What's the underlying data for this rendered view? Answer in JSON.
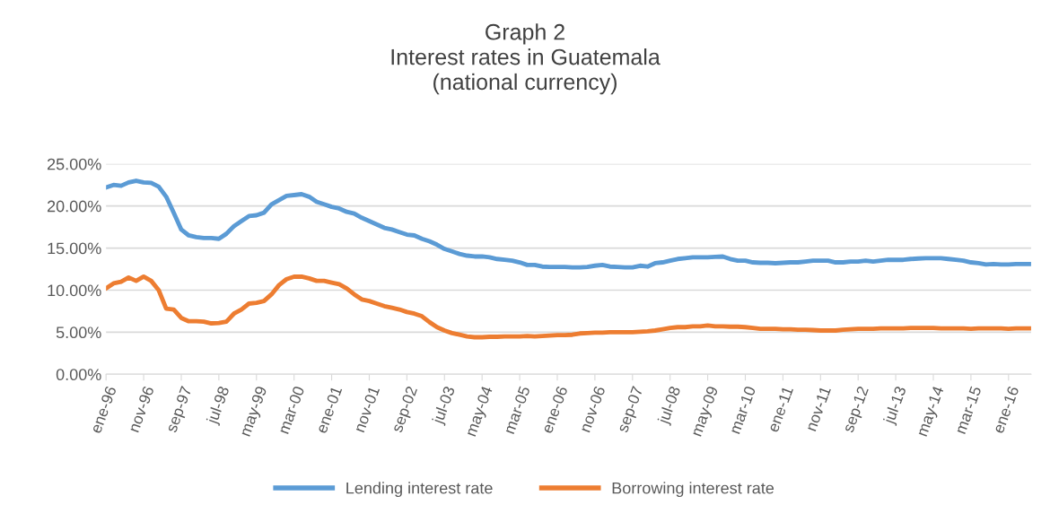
{
  "chart_data": {
    "type": "line",
    "title": "Graph 2\nInterest rates in Guatemala\n(national currency)",
    "categories": [
      "ene-96",
      null,
      null,
      null,
      null,
      "nov-96",
      null,
      null,
      null,
      null,
      "sep-97",
      null,
      null,
      null,
      null,
      "jul-98",
      null,
      null,
      null,
      null,
      "may-99",
      null,
      null,
      null,
      null,
      "mar-00",
      null,
      null,
      null,
      null,
      "ene-01",
      null,
      null,
      null,
      null,
      "nov-01",
      null,
      null,
      null,
      null,
      "sep-02",
      null,
      null,
      null,
      null,
      "jul-03",
      null,
      null,
      null,
      null,
      "may-04",
      null,
      null,
      null,
      null,
      "mar-05",
      null,
      null,
      null,
      null,
      "ene-06",
      null,
      null,
      null,
      null,
      "nov-06",
      null,
      null,
      null,
      null,
      "sep-07",
      null,
      null,
      null,
      null,
      "jul-08",
      null,
      null,
      null,
      null,
      "may-09",
      null,
      null,
      null,
      null,
      "mar-10",
      null,
      null,
      null,
      null,
      "ene-11",
      null,
      null,
      null,
      null,
      "nov-11",
      null,
      null,
      null,
      null,
      "sep-12",
      null,
      null,
      null,
      null,
      "jul-13",
      null,
      null,
      null,
      null,
      "may-14",
      null,
      null,
      null,
      null,
      "mar-15",
      null,
      null,
      null,
      null,
      "ene-16",
      null,
      null,
      null
    ],
    "series": [
      {
        "name": "Lending interest rate",
        "color": "#5b9bd5",
        "values": [
          22.2,
          22.5,
          22.4,
          22.8,
          23.0,
          22.8,
          22.75,
          22.3,
          21.1,
          19.2,
          17.2,
          16.5,
          16.3,
          16.2,
          16.2,
          16.1,
          16.7,
          17.6,
          18.2,
          18.8,
          18.9,
          19.2,
          20.2,
          20.7,
          21.2,
          21.3,
          21.4,
          21.1,
          20.5,
          20.2,
          19.9,
          19.7,
          19.3,
          19.1,
          18.6,
          18.2,
          17.8,
          17.4,
          17.2,
          16.9,
          16.6,
          16.5,
          16.1,
          15.8,
          15.4,
          14.9,
          14.6,
          14.3,
          14.1,
          14.0,
          14.0,
          13.9,
          13.7,
          13.6,
          13.5,
          13.3,
          13.0,
          13.0,
          12.8,
          12.75,
          12.75,
          12.75,
          12.7,
          12.7,
          12.75,
          12.9,
          13.0,
          12.8,
          12.75,
          12.7,
          12.7,
          12.9,
          12.8,
          13.2,
          13.3,
          13.5,
          13.7,
          13.8,
          13.9,
          13.9,
          13.9,
          13.95,
          14.0,
          13.7,
          13.5,
          13.5,
          13.3,
          13.25,
          13.25,
          13.2,
          13.25,
          13.3,
          13.3,
          13.4,
          13.5,
          13.5,
          13.5,
          13.3,
          13.3,
          13.4,
          13.4,
          13.5,
          13.4,
          13.5,
          13.6,
          13.6,
          13.6,
          13.7,
          13.75,
          13.8,
          13.8,
          13.8,
          13.7,
          13.6,
          13.5,
          13.3,
          13.2,
          13.05,
          13.1,
          13.05,
          13.05,
          13.1,
          13.1,
          13.1
        ]
      },
      {
        "name": "Borrowing interest rate",
        "color": "#ed7d31",
        "values": [
          10.2,
          10.8,
          11.0,
          11.5,
          11.1,
          11.6,
          11.1,
          10.0,
          7.8,
          7.7,
          6.7,
          6.3,
          6.3,
          6.25,
          6.05,
          6.1,
          6.25,
          7.2,
          7.7,
          8.4,
          8.5,
          8.7,
          9.5,
          10.6,
          11.3,
          11.6,
          11.6,
          11.4,
          11.1,
          11.1,
          10.9,
          10.7,
          10.2,
          9.5,
          8.9,
          8.7,
          8.4,
          8.1,
          7.9,
          7.7,
          7.4,
          7.2,
          6.9,
          6.2,
          5.6,
          5.2,
          4.9,
          4.7,
          4.5,
          4.4,
          4.4,
          4.45,
          4.45,
          4.5,
          4.5,
          4.5,
          4.55,
          4.5,
          4.55,
          4.6,
          4.65,
          4.65,
          4.7,
          4.85,
          4.9,
          4.95,
          4.95,
          5.0,
          5.0,
          5.0,
          5.0,
          5.05,
          5.1,
          5.2,
          5.35,
          5.5,
          5.6,
          5.6,
          5.7,
          5.7,
          5.8,
          5.7,
          5.7,
          5.65,
          5.65,
          5.6,
          5.5,
          5.4,
          5.4,
          5.4,
          5.35,
          5.35,
          5.3,
          5.3,
          5.25,
          5.2,
          5.2,
          5.2,
          5.3,
          5.35,
          5.4,
          5.4,
          5.4,
          5.45,
          5.45,
          5.45,
          5.45,
          5.5,
          5.5,
          5.5,
          5.5,
          5.45,
          5.45,
          5.45,
          5.45,
          5.4,
          5.45,
          5.45,
          5.45,
          5.45,
          5.4,
          5.45,
          5.45,
          5.45
        ]
      }
    ],
    "ylim": [
      0,
      25
    ],
    "yticks": [
      {
        "value": 0,
        "label": "0.00%"
      },
      {
        "value": 5,
        "label": "5.00%"
      },
      {
        "value": 10,
        "label": "10.00%"
      },
      {
        "value": 15,
        "label": "15.00%"
      },
      {
        "value": 20,
        "label": "20.00%"
      },
      {
        "value": 25,
        "label": "25.00%"
      }
    ],
    "grid": "y",
    "legend": "bottom",
    "marker": "none",
    "line_style": "solid"
  }
}
